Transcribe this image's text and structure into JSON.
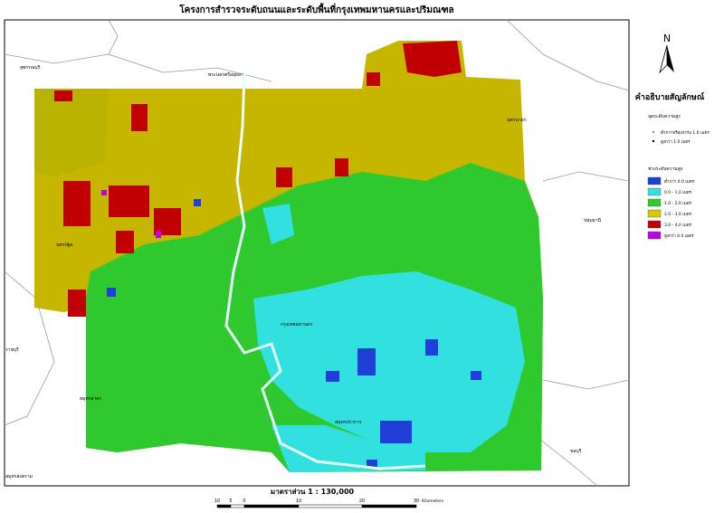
{
  "title": "โครงการสำรวจระดับถนนและระดับพื้นที่กรุงเทพมหานครและปริมณฑล",
  "north": "N",
  "legend": {
    "title": "คำอธิบายสัญลักษณ์",
    "points_title": "จุดระดับความสูง",
    "points": [
      "ต่ำกว่าหรือเท่ากับ 1.0 เมตร",
      "สูงกว่า 1.0 เมตร"
    ],
    "ranges_title": "ช่วงระดับความสูง",
    "ranges": [
      {
        "label": "ต่ำกว่า 0.0 เมตร",
        "color": "#1f3fd6"
      },
      {
        "label": "0.0 - 1.0 เมตร",
        "color": "#33e0e0"
      },
      {
        "label": "1.0 - 2.0 เมตร",
        "color": "#2fc92f"
      },
      {
        "label": "2.0 - 3.0 เมตร",
        "color": "#d9c900"
      },
      {
        "label": "3.0 - 4.0 เมตร",
        "color": "#c00000"
      },
      {
        "label": "สูงกว่า 4.0 เมตร",
        "color": "#c000e0"
      }
    ]
  },
  "places": [
    "สุพรรณบุรี",
    "พระนครศรีอยุธยา",
    "นครนายก",
    "ปทุมธานี",
    "นครปฐม",
    "ราชบุรี",
    "สมุทรสาคร",
    "สมุทรสงคราม",
    "ชลบุรี",
    "กรุงเทพมหานคร",
    "สมุทรปราการ"
  ],
  "scale": "มาตราส่วน 1 : 130,000",
  "scale_bar": {
    "labels": [
      10,
      5,
      0,
      10,
      20,
      30
    ],
    "unit": "Kilometers"
  }
}
